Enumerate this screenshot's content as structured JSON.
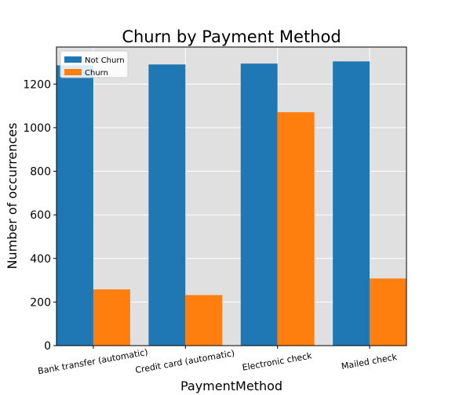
{
  "chart_data": {
    "type": "bar",
    "title": "Churn by Payment Method",
    "xlabel": "PaymentMethod",
    "ylabel": "Number of occurrences",
    "categories": [
      "Bank transfer (automatic)",
      "Credit card (automatic)",
      "Electronic check",
      "Mailed check"
    ],
    "series": [
      {
        "name": "Not Churn",
        "values": [
          1286,
          1290,
          1294,
          1304
        ],
        "color": "#1f77b4"
      },
      {
        "name": "Churn",
        "values": [
          258,
          232,
          1071,
          308
        ],
        "color": "#ff7f0e"
      }
    ],
    "ylim": [
      0,
      1370
    ],
    "yticks": [
      0,
      200,
      400,
      600,
      800,
      1000,
      1200
    ],
    "grid": true,
    "legend_position": "top-left",
    "background_color": "#e0e0e0"
  }
}
